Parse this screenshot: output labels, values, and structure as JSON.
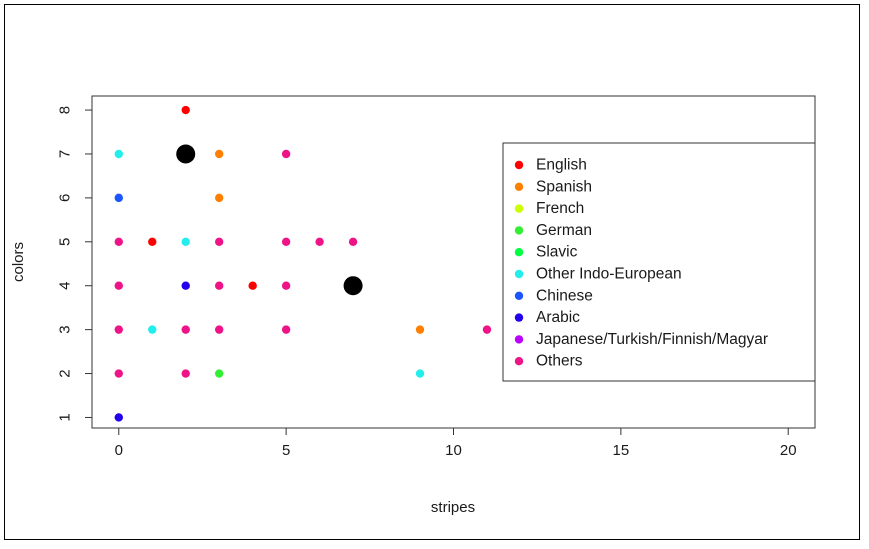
{
  "chart_data": {
    "type": "scatter",
    "title": "",
    "xlabel": "stripes",
    "ylabel": "colors",
    "xlim": [
      -0.8,
      20.8
    ],
    "ylim": [
      0.76,
      8.32
    ],
    "xticks": [
      "0",
      "5",
      "10",
      "15",
      "20"
    ],
    "yticks": [
      "1",
      "2",
      "3",
      "4",
      "5",
      "6",
      "7",
      "8"
    ],
    "grid": false,
    "legend_position": "right",
    "series": [
      {
        "name": "English",
        "color": "#ff0000",
        "points": [
          [
            2,
            8
          ],
          [
            1,
            5
          ],
          [
            4,
            4
          ]
        ]
      },
      {
        "name": "Spanish",
        "color": "#ff8000",
        "points": [
          [
            3,
            7
          ],
          [
            3,
            6
          ],
          [
            9,
            3
          ]
        ]
      },
      {
        "name": "French",
        "color": "#ccff00",
        "points": []
      },
      {
        "name": "German",
        "color": "#33ee33",
        "points": [
          [
            3,
            2
          ]
        ]
      },
      {
        "name": "Slavic",
        "color": "#00ff40",
        "points": []
      },
      {
        "name": "Other Indo-European",
        "color": "#22eeee",
        "points": [
          [
            0,
            7
          ],
          [
            2,
            5
          ],
          [
            1,
            3
          ],
          [
            9,
            2
          ]
        ]
      },
      {
        "name": "Chinese",
        "color": "#1a55ff",
        "points": [
          [
            0,
            6
          ]
        ]
      },
      {
        "name": "Arabic",
        "color": "#2200ee",
        "points": [
          [
            2,
            4
          ],
          [
            0,
            1
          ]
        ]
      },
      {
        "name": "Japanese/Turkish/Finnish/Magyar",
        "color": "#bb00ff",
        "points": []
      },
      {
        "name": "Others",
        "color": "#ee1488",
        "points": [
          [
            0,
            5
          ],
          [
            0,
            4
          ],
          [
            0,
            3
          ],
          [
            0,
            2
          ],
          [
            2,
            3
          ],
          [
            2,
            2
          ],
          [
            3,
            5
          ],
          [
            3,
            4
          ],
          [
            3,
            3
          ],
          [
            5,
            7
          ],
          [
            5,
            5
          ],
          [
            5,
            4
          ],
          [
            5,
            3
          ],
          [
            6,
            5
          ],
          [
            7,
            5
          ],
          [
            11,
            3
          ]
        ]
      }
    ],
    "centers": {
      "color": "#000000",
      "points": [
        [
          2,
          7
        ],
        [
          7,
          4
        ]
      ]
    }
  }
}
